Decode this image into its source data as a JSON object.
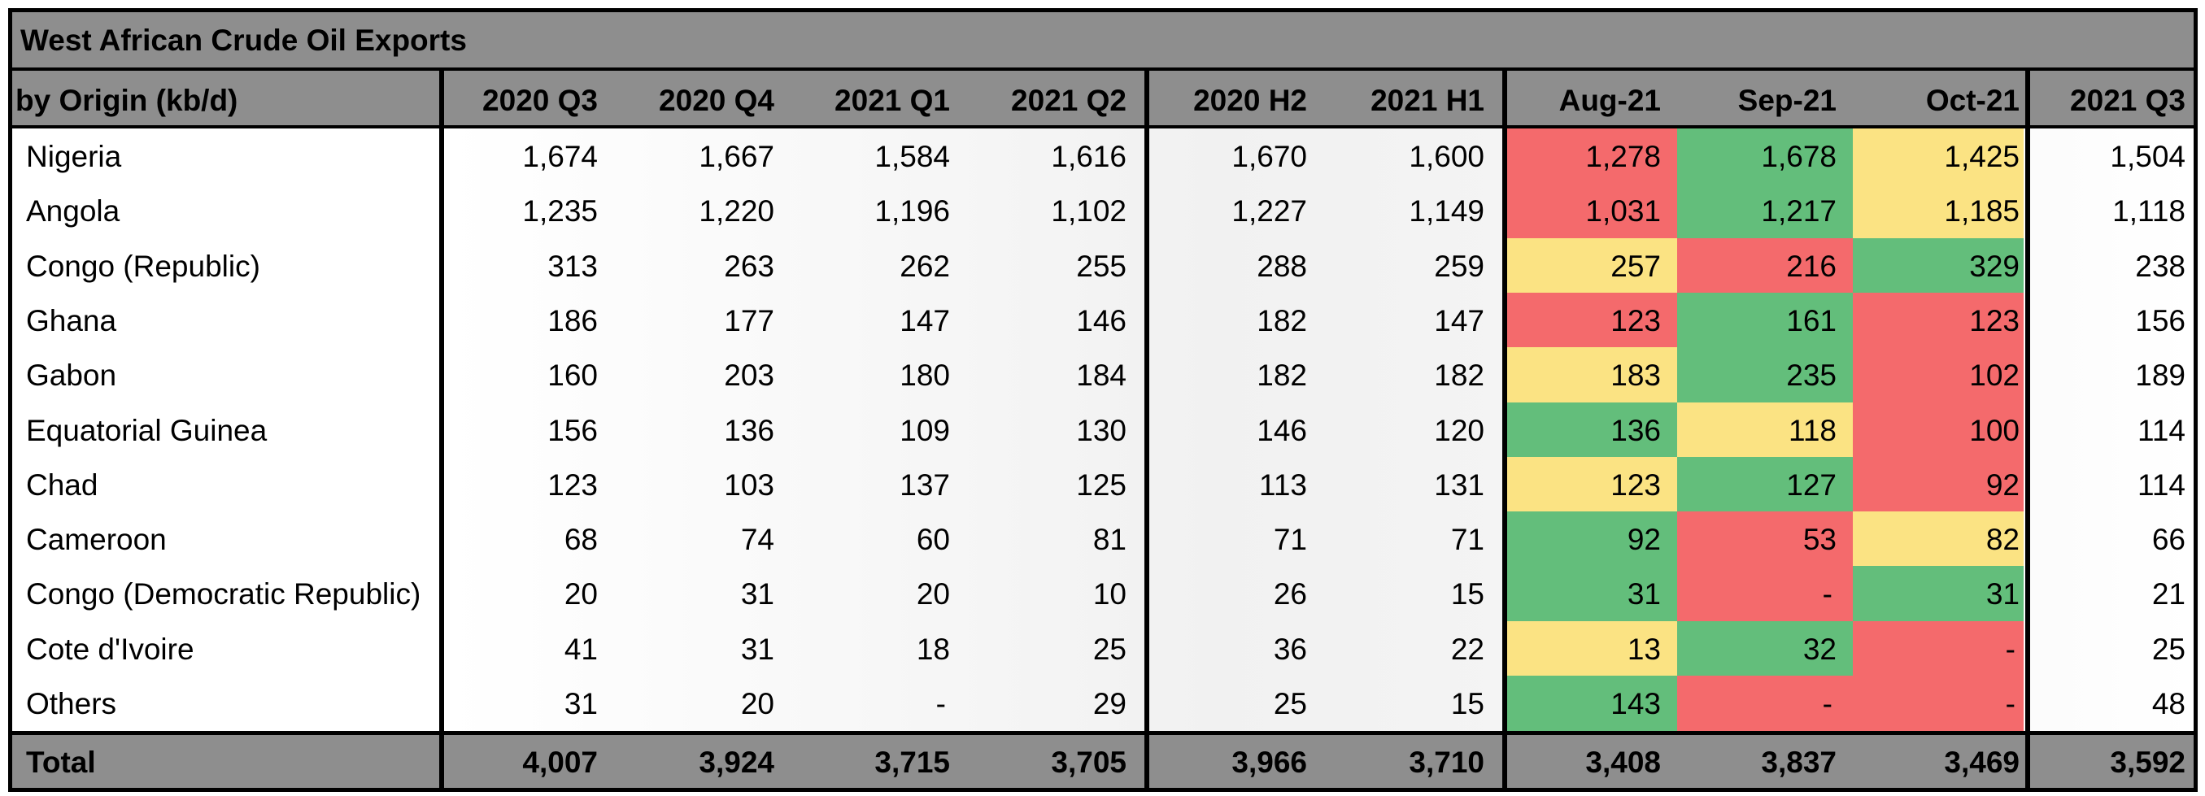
{
  "colors": {
    "header_gray": "#8e8e8e",
    "red": "#f46a6c",
    "green": "#63be7b",
    "yellow": "#fbe383"
  },
  "chart_data": {
    "type": "table",
    "title": "West African Crude Oil Exports",
    "row_header": "by Origin (kb/d)",
    "columns": [
      "2020 Q3",
      "2020 Q4",
      "2021 Q1",
      "2021 Q2",
      "2020 H2",
      "2021 H1",
      "Aug-21",
      "Sep-21",
      "Oct-21",
      "2021 Q3"
    ],
    "rows": [
      {
        "name": "Nigeria",
        "values": [
          "1,674",
          "1,667",
          "1,584",
          "1,616",
          "1,670",
          "1,600",
          "1,278",
          "1,678",
          "1,425",
          "1,504"
        ],
        "monthly_colors": [
          "red",
          "green",
          "yellow"
        ]
      },
      {
        "name": "Angola",
        "values": [
          "1,235",
          "1,220",
          "1,196",
          "1,102",
          "1,227",
          "1,149",
          "1,031",
          "1,217",
          "1,185",
          "1,118"
        ],
        "monthly_colors": [
          "red",
          "green",
          "yellow"
        ]
      },
      {
        "name": "Congo (Republic)",
        "values": [
          "313",
          "263",
          "262",
          "255",
          "288",
          "259",
          "257",
          "216",
          "329",
          "238"
        ],
        "monthly_colors": [
          "yellow",
          "red",
          "green"
        ]
      },
      {
        "name": "Ghana",
        "values": [
          "186",
          "177",
          "147",
          "146",
          "182",
          "147",
          "123",
          "161",
          "123",
          "156"
        ],
        "monthly_colors": [
          "red",
          "green",
          "red"
        ]
      },
      {
        "name": "Gabon",
        "values": [
          "160",
          "203",
          "180",
          "184",
          "182",
          "182",
          "183",
          "235",
          "102",
          "189"
        ],
        "monthly_colors": [
          "yellow",
          "green",
          "red"
        ]
      },
      {
        "name": "Equatorial Guinea",
        "values": [
          "156",
          "136",
          "109",
          "130",
          "146",
          "120",
          "136",
          "118",
          "100",
          "114"
        ],
        "monthly_colors": [
          "green",
          "yellow",
          "red"
        ]
      },
      {
        "name": "Chad",
        "values": [
          "123",
          "103",
          "137",
          "125",
          "113",
          "131",
          "123",
          "127",
          "92",
          "114"
        ],
        "monthly_colors": [
          "yellow",
          "green",
          "red"
        ]
      },
      {
        "name": "Cameroon",
        "values": [
          "68",
          "74",
          "60",
          "81",
          "71",
          "71",
          "92",
          "53",
          "82",
          "66"
        ],
        "monthly_colors": [
          "green",
          "red",
          "yellow"
        ]
      },
      {
        "name": "Congo (Democratic Republic)",
        "values": [
          "20",
          "31",
          "20",
          "10",
          "26",
          "15",
          "31",
          "-",
          "31",
          "21"
        ],
        "monthly_colors": [
          "green",
          "red",
          "green"
        ]
      },
      {
        "name": "Cote d'Ivoire",
        "values": [
          "41",
          "31",
          "18",
          "25",
          "36",
          "22",
          "13",
          "32",
          "-",
          "25"
        ],
        "monthly_colors": [
          "yellow",
          "green",
          "red"
        ]
      },
      {
        "name": "Others",
        "values": [
          "31",
          "20",
          "-",
          "29",
          "25",
          "15",
          "143",
          "-",
          "-",
          "48"
        ],
        "monthly_colors": [
          "green",
          "red",
          "red"
        ]
      }
    ],
    "total": {
      "name": "Total",
      "values": [
        "4,007",
        "3,924",
        "3,715",
        "3,705",
        "3,966",
        "3,710",
        "3,408",
        "3,837",
        "3,469",
        "3,592"
      ]
    },
    "grid": false
  }
}
